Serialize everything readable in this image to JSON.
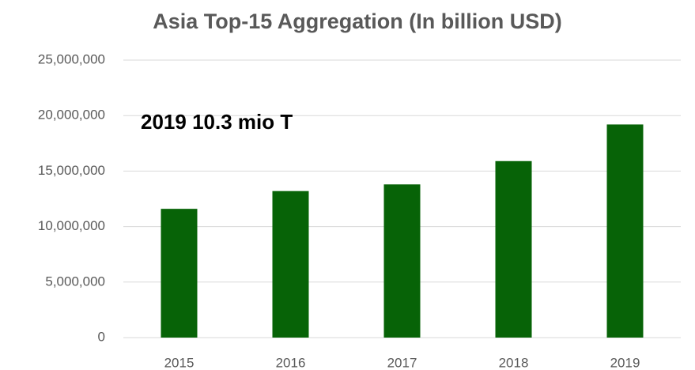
{
  "chart_data": {
    "type": "bar",
    "title": "Asia Top-15 Aggregation (In billion USD)",
    "annotation": "2019 10.3 mio T",
    "categories": [
      "2015",
      "2016",
      "2017",
      "2018",
      "2019"
    ],
    "values": [
      11600000,
      13200000,
      13800000,
      15900000,
      19200000
    ],
    "color": "#076307",
    "ylim": [
      0,
      25000000
    ],
    "yticks": [
      0,
      {
        "value": 5000000,
        "label": "5,000,000"
      },
      {
        "value": 10000000,
        "label": "10,000,000"
      },
      {
        "value": 15000000,
        "label": "15,000,000"
      },
      {
        "value": 20000000,
        "label": "20,000,000"
      },
      {
        "value": 25000000,
        "label": "25,000,000"
      }
    ],
    "grid": true
  }
}
